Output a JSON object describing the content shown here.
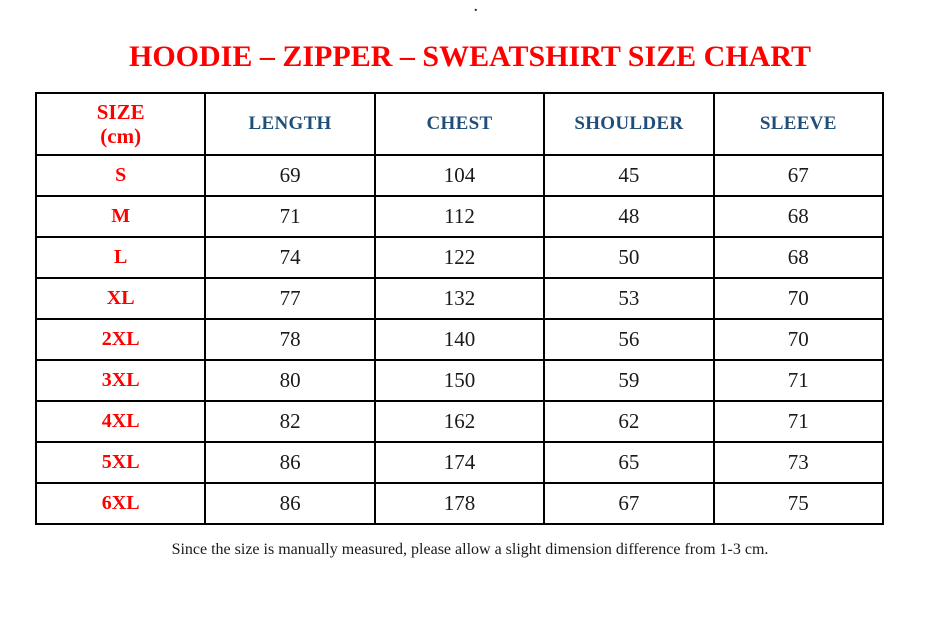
{
  "page": {
    "top_dot": ".",
    "title": "HOODIE – ZIPPER – SWEATSHIRT SIZE CHART",
    "footer_note": "Since the size is manually measured, please allow a slight dimension difference from 1-3 cm."
  },
  "table": {
    "header": {
      "size_label_line1": "SIZE",
      "size_label_line2": "(cm)",
      "columns": [
        "LENGTH",
        "CHEST",
        "SHOULDER",
        "SLEEVE"
      ]
    },
    "rows": [
      {
        "size": "S",
        "length": "69",
        "chest": "104",
        "shoulder": "45",
        "sleeve": "67"
      },
      {
        "size": "M",
        "length": "71",
        "chest": "112",
        "shoulder": "48",
        "sleeve": "68"
      },
      {
        "size": "L",
        "length": "74",
        "chest": "122",
        "shoulder": "50",
        "sleeve": "68"
      },
      {
        "size": "XL",
        "length": "77",
        "chest": "132",
        "shoulder": "53",
        "sleeve": "70"
      },
      {
        "size": "2XL",
        "length": "78",
        "chest": "140",
        "shoulder": "56",
        "sleeve": "70"
      },
      {
        "size": "3XL",
        "length": "80",
        "chest": "150",
        "shoulder": "59",
        "sleeve": "71"
      },
      {
        "size": "4XL",
        "length": "82",
        "chest": "162",
        "shoulder": "62",
        "sleeve": "71"
      },
      {
        "size": "5XL",
        "length": "86",
        "chest": "174",
        "shoulder": "65",
        "sleeve": "73"
      },
      {
        "size": "6XL",
        "length": "86",
        "chest": "178",
        "shoulder": "67",
        "sleeve": "75"
      }
    ]
  },
  "colors": {
    "title_red": "#FF0000",
    "header_blue": "#1F4E79",
    "size_label_red": "#FF0000",
    "value_black": "#1A1A1A",
    "border_black": "#000000",
    "background_white": "#FFFFFF"
  }
}
